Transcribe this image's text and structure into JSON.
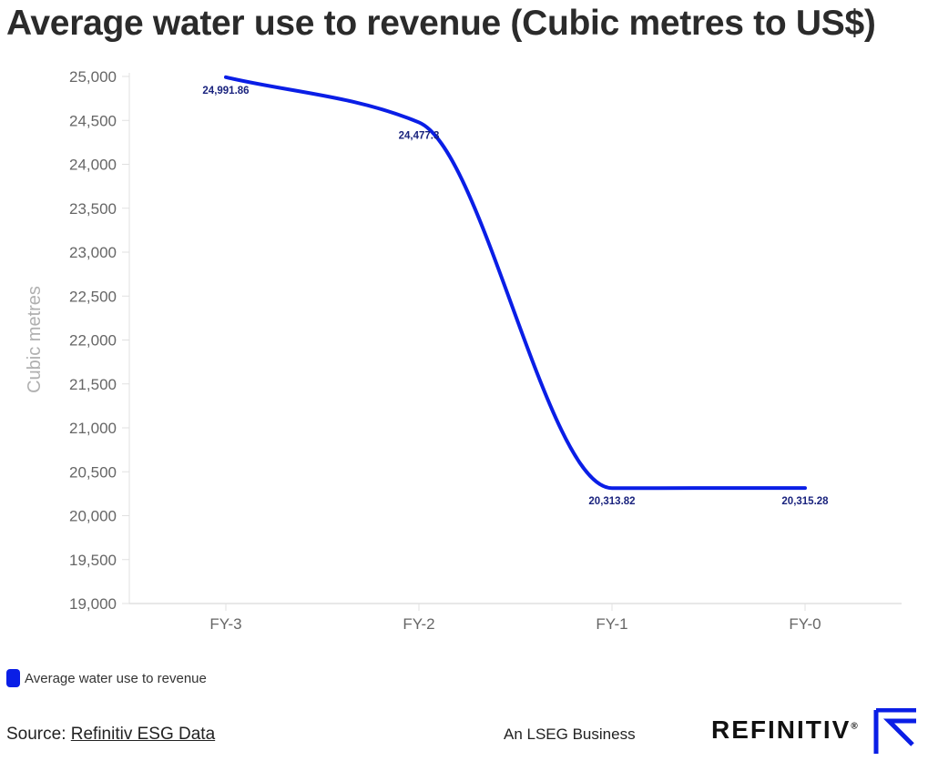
{
  "title": "Average water use to revenue (Cubic metres to US$)",
  "legend_label": "Average water use to revenue",
  "source_prefix": "Source: ",
  "source_link": "Refinitiv ESG Data",
  "lseg_text": "An LSEG Business",
  "brand_text": "REFINITIV",
  "brand_reg": "®",
  "colors": {
    "series": "#0a1ee6",
    "data_label": "#1a237e",
    "axis": "#e0e0e0",
    "tick": "#666666"
  },
  "chart_data": {
    "type": "line",
    "categories": [
      "FY-3",
      "FY-2",
      "FY-1",
      "FY-0"
    ],
    "series": [
      {
        "name": "Average water use to revenue",
        "values": [
          24991.86,
          24477.3,
          20313.82,
          20315.28
        ]
      }
    ],
    "data_labels": [
      "24,991.86",
      "24,477.3",
      "20,313.82",
      "20,315.28"
    ],
    "ylabel": "Cubic metres",
    "xlabel": "",
    "ylim": [
      19000,
      25000
    ],
    "yticks": [
      19000,
      19500,
      20000,
      20500,
      21000,
      21500,
      22000,
      22500,
      23000,
      23500,
      24000,
      24500,
      25000
    ],
    "ytick_labels": [
      "19,000",
      "19,500",
      "20,000",
      "20,500",
      "21,000",
      "21,500",
      "22,000",
      "22,500",
      "23,000",
      "23,500",
      "24,000",
      "24,500",
      "25,000"
    ],
    "grid": false,
    "legend_position": "bottom-left"
  }
}
